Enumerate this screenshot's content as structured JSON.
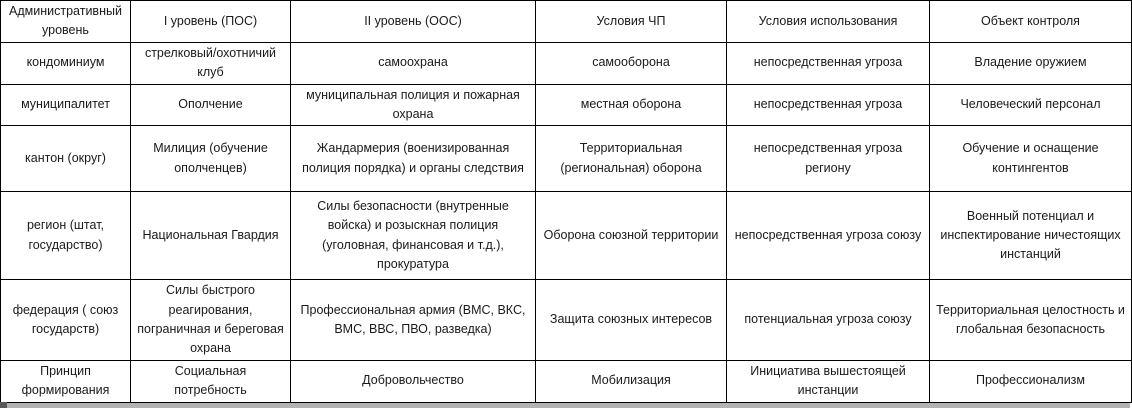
{
  "table": {
    "columns": [
      "Административный уровень",
      "I уровень (ПОС)",
      "II уровень (ООС)",
      "Условия ЧП",
      "Условия использования",
      "Объект контроля"
    ],
    "rows": [
      [
        "кондоминиум",
        "стрелковый/охотничий клуб",
        "самоохрана",
        "самооборона",
        "непосредственная угроза",
        "Владение оружием"
      ],
      [
        "муниципалитет",
        "Ополчение",
        "муниципальная полиция и пожарная охрана",
        "местная оборона",
        "непосредственная угроза",
        "Человеческий персонал"
      ],
      [
        "кантон (округ)",
        "Милиция (обучение ополченцев)",
        "Жандармерия (военизированная полиция порядка) и органы следствия",
        "Территориальная (региональная) оборона",
        "непосредственная угроза региону",
        "Обучение и оснащение контингентов"
      ],
      [
        "регион (штат, государство)",
        "Национальная Гвардия",
        "Силы безопасности (внутренные войска) и розыскная полиция (уголовная, финансовая и т.д.), прокуратура",
        "Оборона союзной территории",
        "непосредственная угроза союзу",
        "Военный потенциал и инспектирование ничестоящих инстанций"
      ],
      [
        "федерация ( союз государств)",
        "Силы быстрого реагирования, пограничная и береговая охрана",
        "Профессиональная армия (ВМС, ВКС, ВМС, ВВС, ПВО, разведка)",
        "Защита союзных интересов",
        "потенциальная угроза союзу",
        "Территориальная целостность и глобальная безопасность"
      ],
      [
        "Принцип формирования",
        "Социальная потребность",
        "Добровольчество",
        "Мобилизация",
        "Инициатива вышестоящей инстанции",
        "Профессионализм"
      ]
    ]
  },
  "colors": {
    "border": "#000000",
    "text": "#1a1a1a",
    "background": "#ffffff",
    "bottom_strip": "#b3b3b3",
    "bottom_corner": "#595959"
  }
}
